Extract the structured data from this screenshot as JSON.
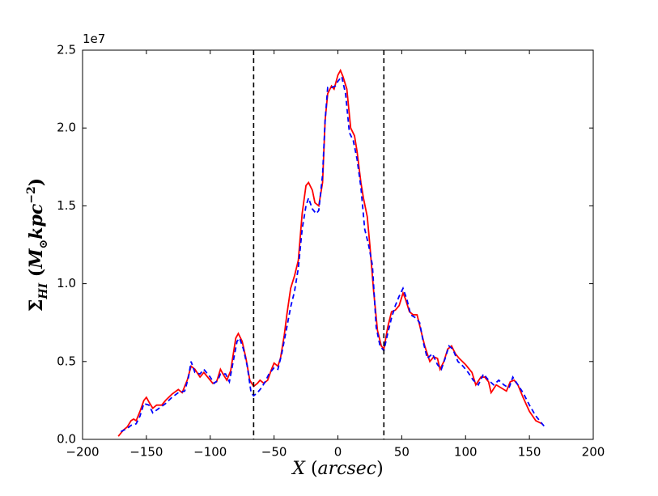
{
  "chart_data": {
    "type": "line",
    "xlabel": [
      "X",
      " (",
      "arcsec",
      ")"
    ],
    "ylabel": [
      "Σ",
      "HI",
      " (",
      "M",
      "⊙",
      "kpc",
      "−2",
      ")"
    ],
    "y_offset_label": "1e7",
    "xlim": [
      -200,
      200
    ],
    "xticks": [
      {
        "value": -200,
        "label": "−200"
      },
      {
        "value": -150,
        "label": "−150"
      },
      {
        "value": -100,
        "label": "−100"
      },
      {
        "value": -50,
        "label": "−50"
      },
      0,
      50,
      100,
      150,
      200
    ],
    "ylim": [
      0,
      2.5
    ],
    "yticks": [
      {
        "value": 0,
        "label": "0.0"
      },
      0.5,
      {
        "value": 1,
        "label": "1.0"
      },
      1.5,
      {
        "value": 2,
        "label": "2.0"
      },
      2.5
    ],
    "vlines": [
      -66,
      36
    ],
    "vline_color": "#000000",
    "series": [
      {
        "color": "#ff0000",
        "dash": false,
        "x": [
          -172,
          -168,
          -165,
          -162,
          -160,
          -158,
          -155,
          -152,
          -150,
          -148,
          -145,
          -142,
          -138,
          -135,
          -130,
          -125,
          -122,
          -118,
          -115,
          -112,
          -108,
          -105,
          -102,
          -98,
          -95,
          -92,
          -90,
          -87,
          -84,
          -80,
          -78,
          -75,
          -72,
          -69,
          -66,
          -63,
          -61,
          -58,
          -55,
          -52,
          -50,
          -47,
          -45,
          -42,
          -40,
          -37,
          -34,
          -31,
          -28,
          -25,
          -23,
          -20,
          -18,
          -15,
          -12,
          -10,
          -8,
          -5,
          -3,
          0,
          2,
          4,
          7,
          10,
          13,
          15,
          18,
          20,
          23,
          25,
          28,
          31,
          34,
          36,
          39,
          42,
          45,
          48,
          51,
          53,
          56,
          59,
          62,
          65,
          68,
          72,
          75,
          78,
          80,
          83,
          86,
          89,
          92,
          95,
          100,
          105,
          108,
          112,
          115,
          118,
          120,
          124,
          128,
          132,
          135,
          138,
          141,
          145,
          150,
          155,
          160
        ],
        "values": [
          0.02,
          0.06,
          0.08,
          0.12,
          0.13,
          0.12,
          0.18,
          0.25,
          0.27,
          0.24,
          0.2,
          0.22,
          0.22,
          0.25,
          0.29,
          0.32,
          0.3,
          0.38,
          0.47,
          0.45,
          0.4,
          0.43,
          0.4,
          0.36,
          0.37,
          0.45,
          0.42,
          0.38,
          0.44,
          0.65,
          0.68,
          0.63,
          0.52,
          0.38,
          0.34,
          0.36,
          0.38,
          0.36,
          0.38,
          0.45,
          0.49,
          0.47,
          0.52,
          0.67,
          0.8,
          0.97,
          1.05,
          1.15,
          1.45,
          1.63,
          1.65,
          1.6,
          1.52,
          1.5,
          1.65,
          2.05,
          2.22,
          2.27,
          2.25,
          2.34,
          2.37,
          2.33,
          2.25,
          2.0,
          1.95,
          1.85,
          1.65,
          1.55,
          1.43,
          1.25,
          0.95,
          0.7,
          0.6,
          0.58,
          0.72,
          0.82,
          0.83,
          0.86,
          0.94,
          0.9,
          0.82,
          0.8,
          0.8,
          0.7,
          0.6,
          0.5,
          0.53,
          0.52,
          0.45,
          0.5,
          0.58,
          0.6,
          0.55,
          0.52,
          0.48,
          0.43,
          0.35,
          0.4,
          0.4,
          0.37,
          0.3,
          0.35,
          0.33,
          0.31,
          0.37,
          0.38,
          0.35,
          0.27,
          0.18,
          0.12,
          0.1
        ]
      },
      {
        "color": "#0000ff",
        "dash": true,
        "x": [
          -170,
          -165,
          -162,
          -158,
          -155,
          -152,
          -148,
          -145,
          -140,
          -135,
          -130,
          -125,
          -120,
          -117,
          -115,
          -112,
          -108,
          -105,
          -100,
          -97,
          -94,
          -92,
          -88,
          -85,
          -82,
          -79,
          -77,
          -74,
          -71,
          -68,
          -66,
          -63,
          -60,
          -57,
          -54,
          -50,
          -47,
          -44,
          -40,
          -37,
          -34,
          -31,
          -28,
          -25,
          -23,
          -20,
          -17,
          -15,
          -12,
          -10,
          -8,
          -5,
          -2,
          0,
          3,
          6,
          9,
          12,
          15,
          18,
          21,
          24,
          27,
          30,
          33,
          36,
          39,
          42,
          45,
          48,
          51,
          54,
          57,
          61,
          64,
          67,
          70,
          74,
          78,
          81,
          84,
          87,
          90,
          94,
          98,
          102,
          106,
          110,
          114,
          118,
          122,
          126,
          130,
          134,
          137,
          141,
          145,
          150,
          155,
          160,
          163
        ],
        "values": [
          0.05,
          0.07,
          0.09,
          0.1,
          0.15,
          0.23,
          0.22,
          0.17,
          0.2,
          0.23,
          0.27,
          0.3,
          0.31,
          0.4,
          0.5,
          0.43,
          0.42,
          0.45,
          0.4,
          0.36,
          0.38,
          0.42,
          0.42,
          0.37,
          0.5,
          0.63,
          0.65,
          0.58,
          0.47,
          0.3,
          0.28,
          0.3,
          0.33,
          0.37,
          0.42,
          0.46,
          0.45,
          0.55,
          0.72,
          0.85,
          0.95,
          1.1,
          1.35,
          1.5,
          1.55,
          1.48,
          1.45,
          1.47,
          1.7,
          2.05,
          2.26,
          2.26,
          2.27,
          2.3,
          2.33,
          2.22,
          1.97,
          1.92,
          1.8,
          1.62,
          1.35,
          1.25,
          1.12,
          0.72,
          0.6,
          0.57,
          0.68,
          0.78,
          0.86,
          0.92,
          0.97,
          0.9,
          0.8,
          0.78,
          0.75,
          0.62,
          0.52,
          0.55,
          0.48,
          0.45,
          0.52,
          0.6,
          0.58,
          0.5,
          0.47,
          0.43,
          0.38,
          0.35,
          0.42,
          0.38,
          0.35,
          0.38,
          0.35,
          0.33,
          0.4,
          0.35,
          0.3,
          0.22,
          0.15,
          0.1,
          0.07
        ]
      }
    ]
  }
}
